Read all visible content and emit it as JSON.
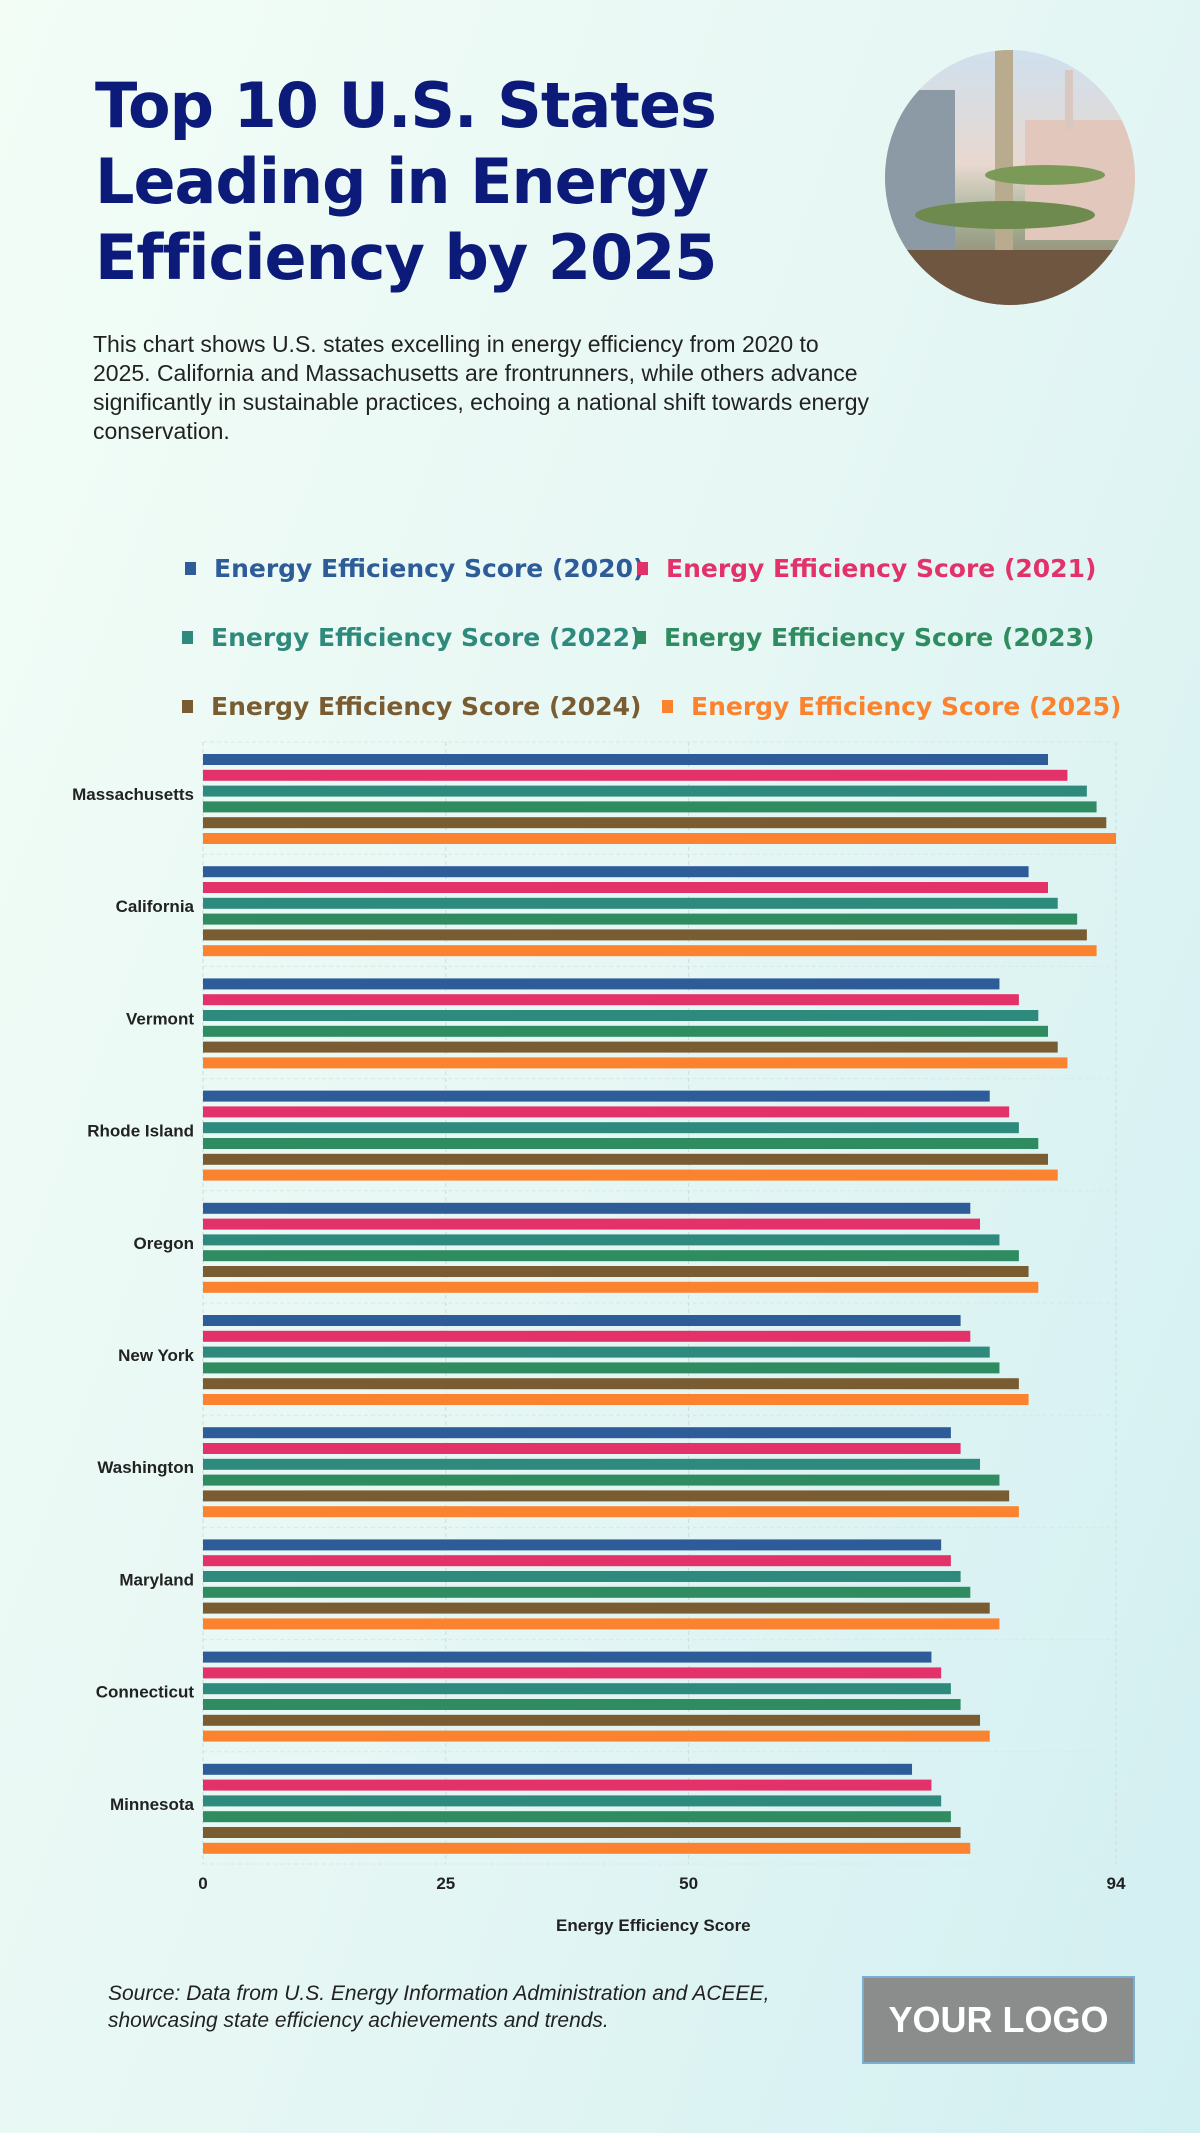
{
  "title": "Top 10 U.S. States Leading in Energy Efficiency by 2025",
  "description": "This chart shows U.S. states excelling in energy efficiency from 2020 to 2025. California and Massachusetts are frontrunners, while others advance significantly in sustainable practices, echoing a national shift towards energy conservation.",
  "source": "Source: Data from U.S. Energy Information Administration and ACEEE, showcasing state efficiency achievements and trends.",
  "logo": "YOUR LOGO",
  "chart_data": {
    "type": "bar",
    "orientation": "horizontal",
    "categories": [
      "Massachusetts",
      "California",
      "Vermont",
      "Rhode Island",
      "Oregon",
      "New York",
      "Washington",
      "Maryland",
      "Connecticut",
      "Minnesota"
    ],
    "series": [
      {
        "name": "Energy Efficiency Score (2020)",
        "color": "#2e5c99",
        "values": [
          87,
          85,
          82,
          81,
          79,
          78,
          77,
          76,
          75,
          73
        ]
      },
      {
        "name": "Energy Efficiency Score (2021)",
        "color": "#e3326a",
        "values": [
          89,
          87,
          84,
          83,
          80,
          79,
          78,
          77,
          76,
          75
        ]
      },
      {
        "name": "Energy Efficiency Score (2022)",
        "color": "#2e8a7c",
        "values": [
          91,
          88,
          86,
          84,
          82,
          81,
          80,
          78,
          77,
          76
        ]
      },
      {
        "name": "Energy Efficiency Score (2023)",
        "color": "#2e8c60",
        "values": [
          92,
          90,
          87,
          86,
          84,
          82,
          82,
          79,
          78,
          77
        ]
      },
      {
        "name": "Energy Efficiency Score (2024)",
        "color": "#7a5c32",
        "values": [
          93,
          91,
          88,
          87,
          85,
          84,
          83,
          81,
          80,
          78
        ]
      },
      {
        "name": "Energy Efficiency Score (2025)",
        "color": "#fb8330",
        "values": [
          94,
          92,
          89,
          88,
          86,
          85,
          84,
          82,
          81,
          79
        ]
      }
    ],
    "xticks": [
      "0",
      "25",
      "50",
      "94"
    ],
    "xlim": [
      0,
      94
    ],
    "xlabel": "Energy Efficiency Score",
    "grid": true,
    "legend": "top"
  }
}
